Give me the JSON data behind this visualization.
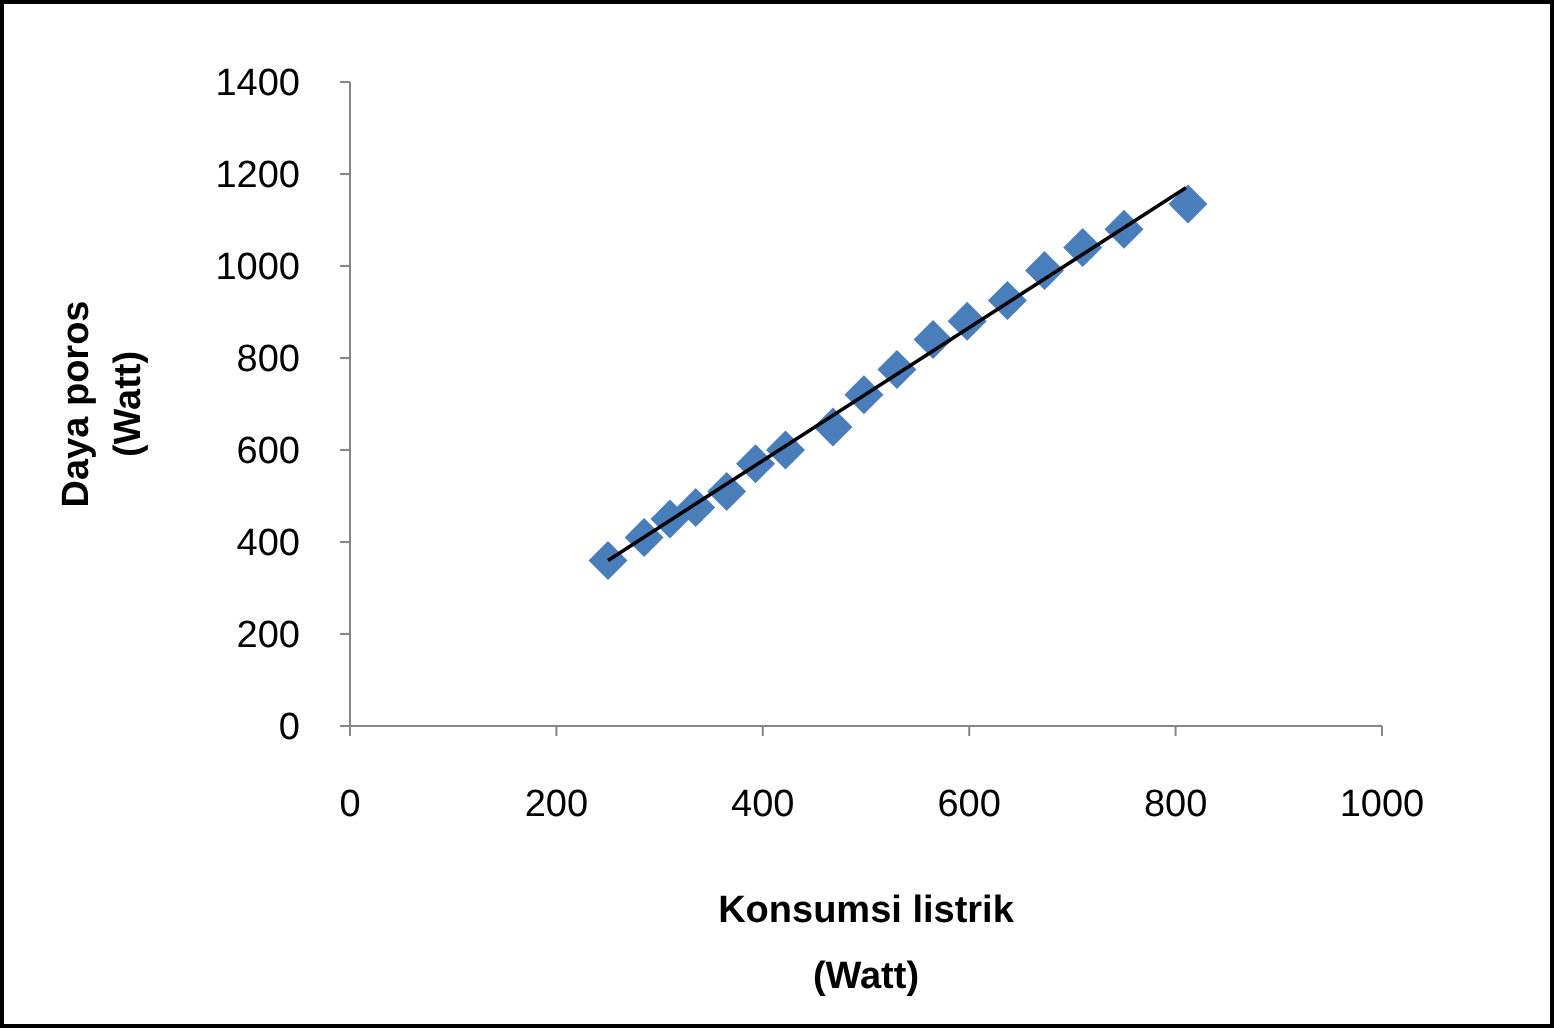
{
  "chart_data": {
    "type": "scatter",
    "xlabel": "Konsumsi listrik\n(Watt)",
    "ylabel": "Daya poros\n(Watt)",
    "xlim": [
      0,
      1000
    ],
    "xticks": [
      0,
      200,
      400,
      600,
      800,
      1000
    ],
    "ylim": [
      0,
      1400
    ],
    "yticks": [
      0,
      200,
      400,
      600,
      800,
      1000,
      1200,
      1400
    ],
    "grid": false,
    "series": [
      {
        "marker": "diamond",
        "color": "#4a7ebb",
        "x": [
          250,
          285,
          310,
          335,
          365,
          393,
          422,
          468,
          498,
          530,
          565,
          598,
          637,
          673,
          710,
          750,
          812
        ],
        "values": [
          360,
          410,
          450,
          475,
          510,
          570,
          600,
          650,
          720,
          775,
          840,
          880,
          925,
          990,
          1040,
          1080,
          1135
        ]
      },
      {
        "type": "line",
        "marker": "none",
        "color": "#000000",
        "x": [
          250,
          810
        ],
        "values": [
          360,
          1170
        ]
      }
    ]
  }
}
